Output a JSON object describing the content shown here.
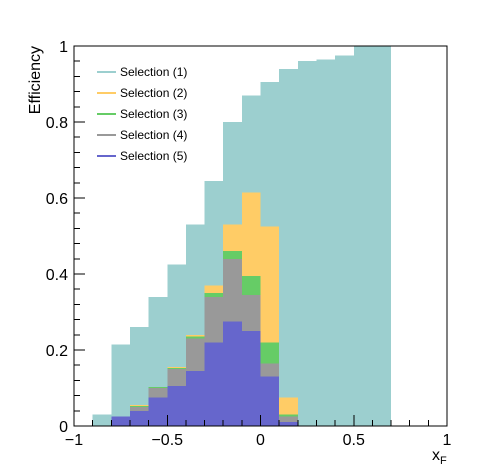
{
  "chart_data": {
    "type": "bar",
    "subtype": "stacked-histogram-overlay",
    "xlabel_main": "x",
    "xlabel_sub": "F",
    "ylabel": "Efficiency",
    "xlim": [
      -1,
      1
    ],
    "ylim": [
      0,
      1
    ],
    "grid": false,
    "legend_position": "top-left",
    "x_ticks": [
      "−1",
      "−0.5",
      "0",
      "0.5",
      "1"
    ],
    "y_ticks": [
      "0",
      "0.2",
      "0.4",
      "0.6",
      "0.8",
      "1"
    ],
    "bin_edges": [
      -1.0,
      -0.9,
      -0.8,
      -0.7,
      -0.6,
      -0.5,
      -0.4,
      -0.3,
      -0.2,
      -0.1,
      0.0,
      0.1,
      0.2,
      0.3,
      0.4,
      0.5,
      0.6,
      0.7,
      0.8,
      0.9,
      1.0
    ],
    "series": [
      {
        "name": "Selection (1)",
        "color": "#9ccfcf",
        "values": [
          0,
          0.03,
          0.215,
          0.26,
          0.34,
          0.425,
          0.53,
          0.645,
          0.8,
          0.87,
          0.905,
          0.94,
          0.96,
          0.965,
          0.975,
          1.0,
          1.0,
          0,
          0,
          0
        ]
      },
      {
        "name": "Selection (2)",
        "color": "#ffcc66",
        "values": [
          0,
          0,
          0.025,
          0.055,
          0.1,
          0.155,
          0.24,
          0.37,
          0.53,
          0.615,
          0.525,
          0.075,
          0,
          0,
          0,
          0,
          0,
          0,
          0,
          0
        ]
      },
      {
        "name": "Selection (3)",
        "color": "#66cc66",
        "values": [
          0,
          0,
          0.025,
          0.053,
          0.102,
          0.152,
          0.235,
          0.35,
          0.46,
          0.395,
          0.22,
          0.03,
          0,
          0,
          0,
          0,
          0,
          0,
          0,
          0
        ]
      },
      {
        "name": "Selection (4)",
        "color": "#999999",
        "values": [
          0,
          0,
          0.025,
          0.05,
          0.1,
          0.15,
          0.23,
          0.34,
          0.44,
          0.345,
          0.165,
          0.025,
          0,
          0,
          0,
          0,
          0,
          0,
          0,
          0
        ]
      },
      {
        "name": "Selection (5)",
        "color": "#6666cc",
        "values": [
          0,
          0,
          0.025,
          0.04,
          0.075,
          0.105,
          0.145,
          0.22,
          0.275,
          0.25,
          0.13,
          0.01,
          0,
          0,
          0,
          0,
          0,
          0,
          0,
          0
        ]
      }
    ]
  }
}
